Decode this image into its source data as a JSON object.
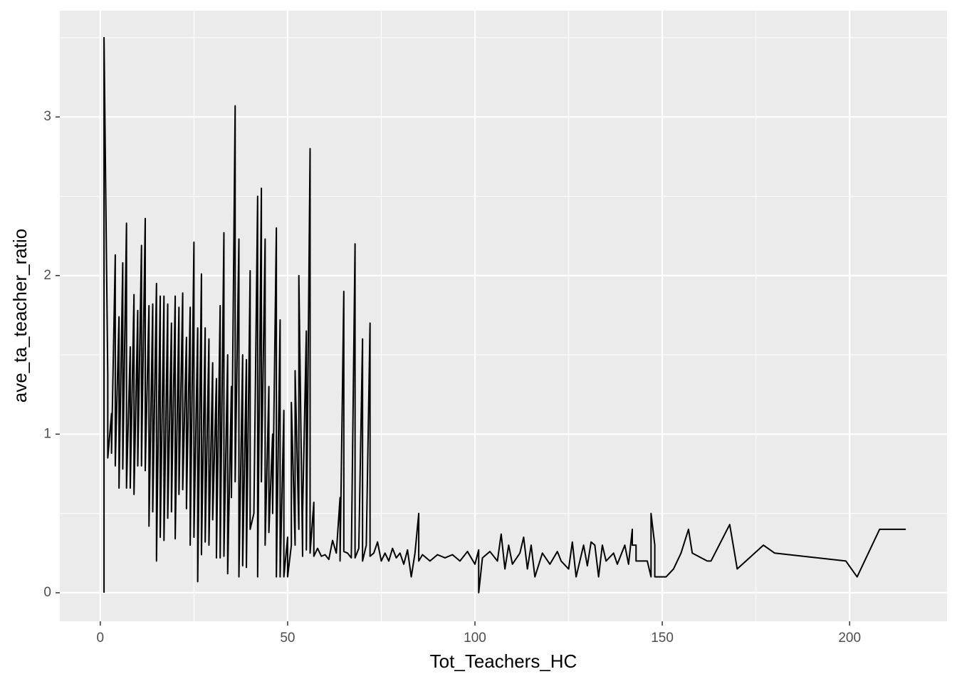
{
  "chart_data": {
    "type": "line",
    "xlabel": "Tot_Teachers_HC",
    "ylabel": "ave_ta_teacher_ratio",
    "color": "#000000",
    "grid": true,
    "xlim": [
      -10.8,
      226
    ],
    "ylim": [
      -0.18,
      3.67
    ],
    "xticks": [
      0,
      50,
      100,
      150,
      200
    ],
    "yticks": [
      0,
      1,
      2,
      3
    ],
    "x_minor_ticks": [
      25,
      75,
      125,
      175
    ],
    "y_minor_ticks": [
      0.5,
      1.5,
      2.5,
      3.5
    ],
    "x": [
      1,
      1,
      2,
      2,
      3,
      3,
      4,
      4,
      5,
      5,
      6,
      6,
      7,
      7,
      8,
      8,
      9,
      9,
      10,
      10,
      11,
      11,
      12,
      12,
      13,
      13,
      14,
      14,
      15,
      15,
      16,
      16,
      17,
      17,
      18,
      18,
      19,
      19,
      20,
      20,
      21,
      21,
      22,
      22,
      23,
      23,
      24,
      24,
      25,
      25,
      26,
      26,
      27,
      27,
      28,
      28,
      29,
      29,
      30,
      30,
      31,
      31,
      32,
      32,
      33,
      33,
      34,
      34,
      35,
      35,
      36,
      36,
      37,
      37,
      38,
      38,
      39,
      39,
      40,
      40,
      41,
      42,
      42,
      43,
      43,
      44,
      44,
      45,
      45,
      46,
      46,
      47,
      47,
      48,
      48,
      49,
      49,
      50,
      50,
      51,
      51,
      52,
      52,
      53,
      53,
      54,
      54,
      55,
      55,
      56,
      56,
      57,
      57,
      58,
      59,
      60,
      61,
      62,
      63,
      64,
      64,
      65,
      65,
      66,
      67,
      68,
      68,
      69,
      70,
      70,
      71,
      72,
      72,
      73,
      74,
      75,
      76,
      77,
      78,
      79,
      80,
      81,
      82,
      83,
      84,
      85,
      85,
      86,
      88,
      90,
      92,
      94,
      96,
      98,
      100,
      101,
      101,
      102,
      104,
      106,
      107,
      108,
      109,
      110,
      112,
      113,
      114,
      115,
      116,
      118,
      120,
      122,
      123,
      125,
      126,
      127,
      129,
      130,
      131,
      132,
      133,
      134,
      135,
      137,
      138,
      140,
      141,
      142,
      142,
      143,
      143,
      146,
      147,
      147,
      148,
      148,
      151,
      153,
      155,
      157,
      158,
      162,
      163,
      168,
      170,
      177,
      180,
      199,
      202,
      208,
      215
    ],
    "values": [
      0,
      3.5,
      1.37,
      0.85,
      1.13,
      0.88,
      2.13,
      0.8,
      1.74,
      0.66,
      2.08,
      0.78,
      2.33,
      0.66,
      1.55,
      0.66,
      1.88,
      0.62,
      1.78,
      0.8,
      2.19,
      0.8,
      2.36,
      0.77,
      1.81,
      0.42,
      1.82,
      0.51,
      1.95,
      0.2,
      1.87,
      0.35,
      1.87,
      0.33,
      1.82,
      0.47,
      1.7,
      0.51,
      1.87,
      0.34,
      1.8,
      0.62,
      1.89,
      0.65,
      1.61,
      0.53,
      1.8,
      0.3,
      2.21,
      0.35,
      1.67,
      0.07,
      2.01,
      0.24,
      1.67,
      0.32,
      1.6,
      0.3,
      1.45,
      0.46,
      1.35,
      0.22,
      1.81,
      0.22,
      2.27,
      0.23,
      1.5,
      0.12,
      1.3,
      0.6,
      3.07,
      0.7,
      2.23,
      0.1,
      1.5,
      0.17,
      1.47,
      0.16,
      2.03,
      0.4,
      0.5,
      2.5,
      0.1,
      2.55,
      0.7,
      2.23,
      0.3,
      1.3,
      0.38,
      1.0,
      0.5,
      2.3,
      0.1,
      1.72,
      0.1,
      1.15,
      0.1,
      0.35,
      0.1,
      0.3,
      1.2,
      0.3,
      1.4,
      0.4,
      2.0,
      0.23,
      0.5,
      1.65,
      0.27,
      2.8,
      0.25,
      0.57,
      0.23,
      0.28,
      0.23,
      0.24,
      0.21,
      0.33,
      0.25,
      0.6,
      0.2,
      1.9,
      0.26,
      0.25,
      0.22,
      2.2,
      0.22,
      0.28,
      1.6,
      0.2,
      0.3,
      1.7,
      0.23,
      0.25,
      0.32,
      0.2,
      0.25,
      0.2,
      0.28,
      0.22,
      0.25,
      0.18,
      0.27,
      0.1,
      0.25,
      0.5,
      0.2,
      0.24,
      0.2,
      0.24,
      0.22,
      0.24,
      0.2,
      0.26,
      0.18,
      0.27,
      0,
      0.22,
      0.26,
      0.2,
      0.37,
      0.15,
      0.3,
      0.18,
      0.25,
      0.35,
      0.15,
      0.3,
      0.1,
      0.25,
      0.18,
      0.26,
      0.2,
      0.15,
      0.32,
      0.1,
      0.3,
      0.17,
      0.32,
      0.3,
      0.1,
      0.3,
      0.2,
      0.25,
      0.18,
      0.3,
      0.18,
      0.4,
      0.3,
      0.3,
      0.2,
      0.2,
      0.1,
      0.5,
      0.3,
      0.1,
      0.1,
      0.15,
      0.25,
      0.4,
      0.25,
      0.2,
      0.2,
      0.43,
      0.15,
      0.3,
      0.25,
      0.2,
      0.1,
      0.4,
      0.4
    ]
  }
}
